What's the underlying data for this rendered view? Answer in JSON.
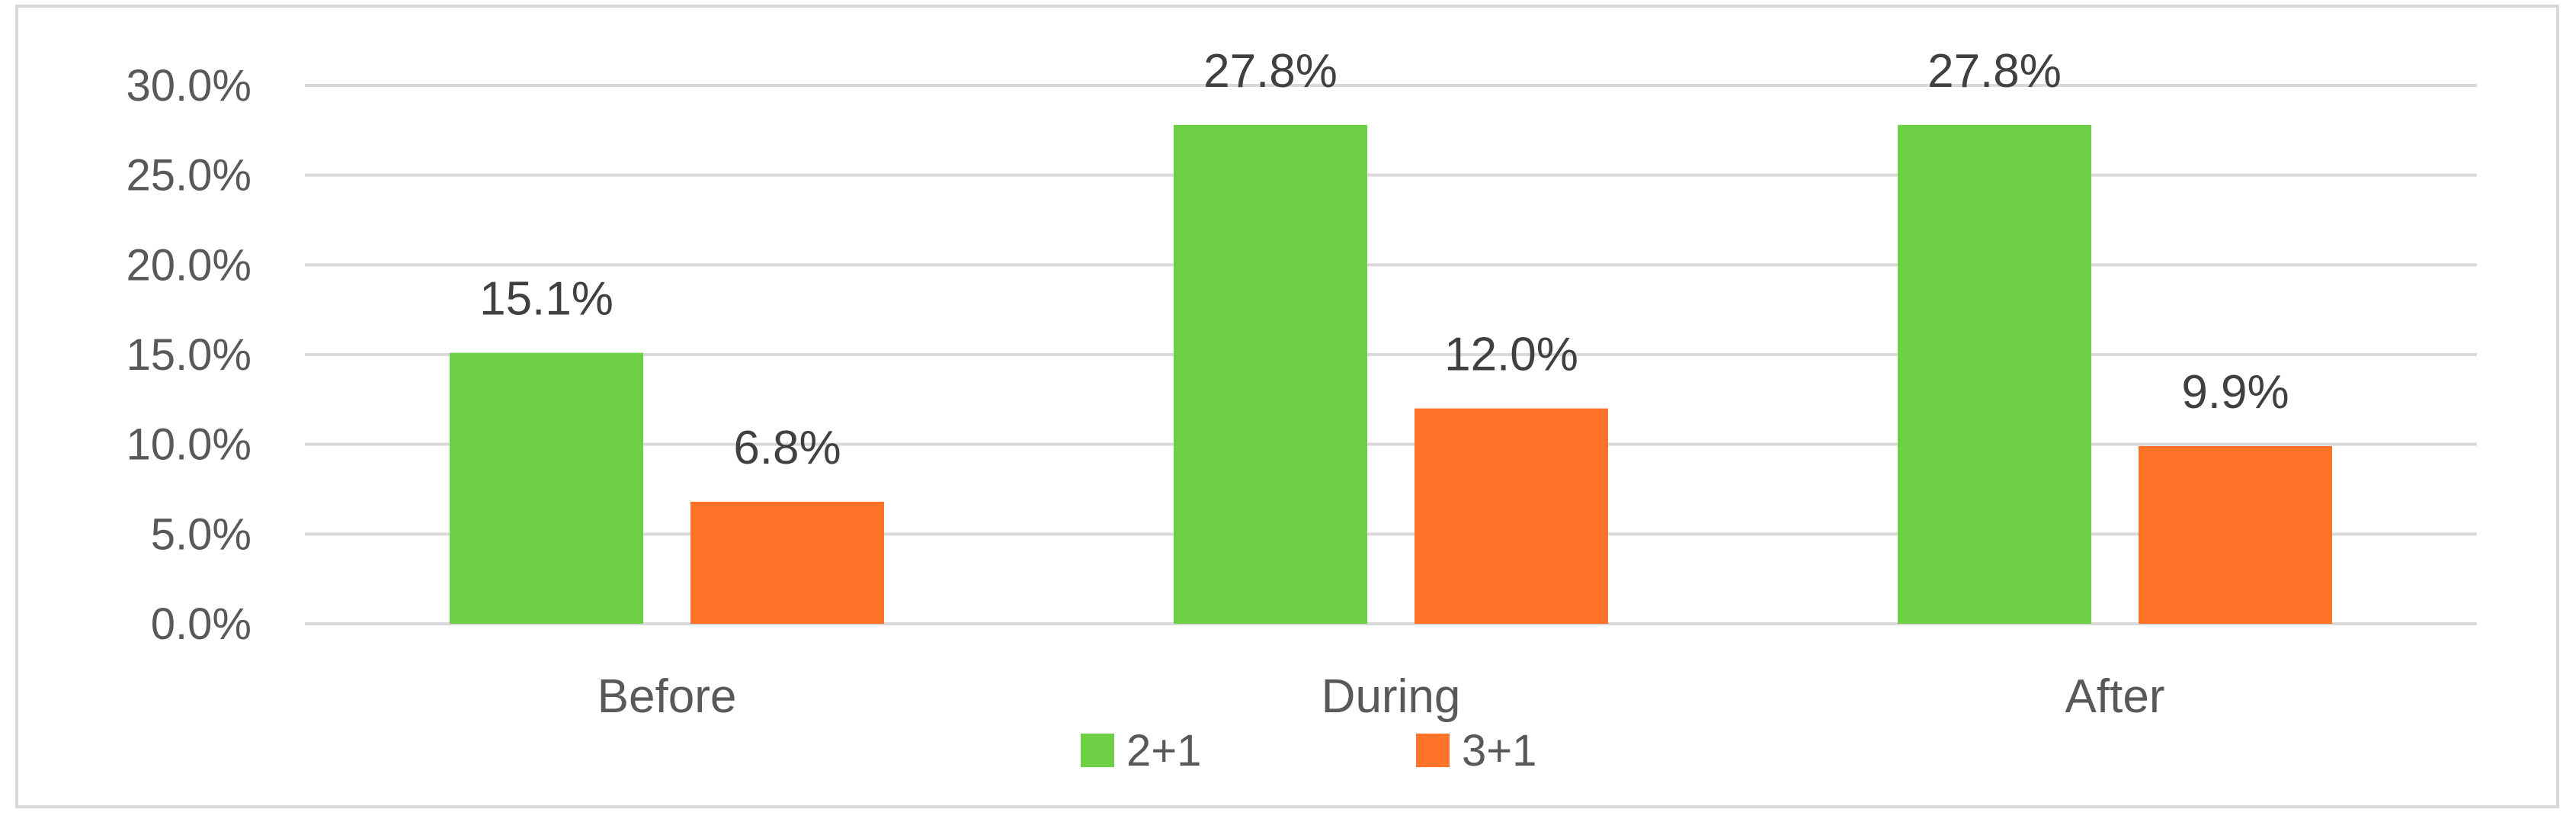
{
  "chart_data": {
    "type": "bar",
    "categories": [
      "Before",
      "During",
      "After"
    ],
    "series": [
      {
        "name": "2+1",
        "color": "#6ED045",
        "values": [
          15.1,
          27.8,
          27.8
        ]
      },
      {
        "name": "3+1",
        "color": "#FF7328",
        "values": [
          6.8,
          12.0,
          9.9
        ]
      }
    ],
    "ylim": [
      0,
      30
    ],
    "yticks": [
      0,
      5,
      10,
      15,
      20,
      25,
      30
    ],
    "ytick_labels": [
      "0.0%",
      "5.0%",
      "10.0%",
      "15.0%",
      "20.0%",
      "25.0%",
      "30.0%"
    ],
    "data_labels": [
      [
        "15.1%",
        "27.8%",
        "27.8%"
      ],
      [
        "6.8%",
        "12.0%",
        "9.9%"
      ]
    ],
    "grid": true,
    "gridline_color": "#d9d9d9",
    "legend_position": "bottom-center"
  }
}
